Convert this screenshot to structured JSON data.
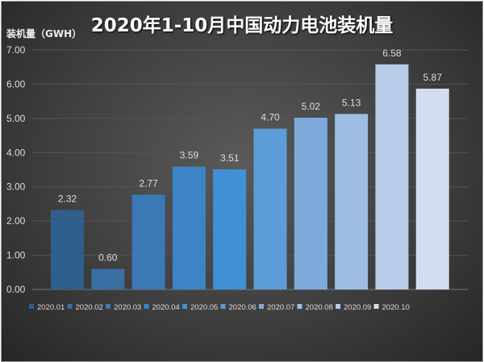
{
  "chart_data": {
    "type": "bar",
    "title": "2020年1-10月中国动力电池装机量",
    "ylabel": "装机量（GWH）",
    "xlabel": "",
    "categories": [
      "2020.01",
      "2020.02",
      "2020.03",
      "2020.04",
      "2020.05",
      "2020.06",
      "2020.07",
      "2020.08",
      "2020.09",
      "2020.10"
    ],
    "values": [
      2.32,
      0.6,
      2.77,
      3.59,
      3.51,
      4.7,
      5.02,
      5.13,
      6.58,
      5.87
    ],
    "value_labels": [
      "2.32",
      "0.60",
      "2.77",
      "3.59",
      "3.51",
      "4.70",
      "5.02",
      "5.13",
      "6.58",
      "5.87"
    ],
    "colors": [
      "#2f5f8c",
      "#3a6fa3",
      "#3a79b6",
      "#3c84c6",
      "#4190d6",
      "#5c9dd8",
      "#7eaadb",
      "#9fbce3",
      "#b8cce9",
      "#d3ddf0"
    ],
    "ylim": [
      0,
      7
    ],
    "yticks": [
      "0.00",
      "1.00",
      "2.00",
      "3.00",
      "4.00",
      "5.00",
      "6.00",
      "7.00"
    ],
    "grid": true,
    "legend_position": "bottom"
  }
}
